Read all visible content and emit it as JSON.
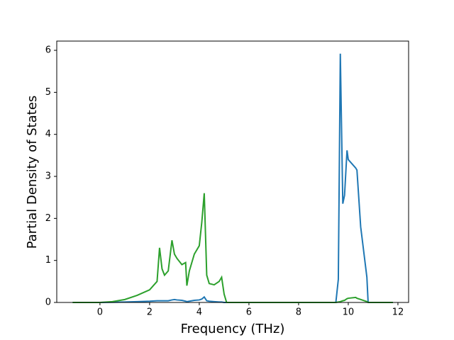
{
  "chart_data": {
    "type": "line",
    "x_label": "Frequency (THz)",
    "y_label": "Partial Density of States",
    "x": [
      -1.1,
      0,
      0.5,
      1.0,
      1.5,
      2.0,
      2.3,
      2.4,
      2.5,
      2.6,
      2.75,
      2.9,
      3.0,
      3.1,
      3.3,
      3.45,
      3.5,
      3.6,
      3.8,
      4.0,
      4.1,
      4.2,
      4.3,
      4.4,
      4.6,
      4.8,
      4.9,
      5.0,
      5.1,
      6,
      8,
      9.5,
      9.6,
      9.68,
      9.78,
      9.85,
      9.95,
      10.0,
      10.3,
      10.35,
      10.5,
      10.75,
      10.8,
      11.8
    ],
    "series": [
      {
        "color": "#1f77b4",
        "values": [
          0,
          0,
          0.005,
          0.01,
          0.02,
          0.03,
          0.04,
          0.04,
          0.04,
          0.04,
          0.04,
          0.06,
          0.07,
          0.06,
          0.05,
          0.03,
          0.02,
          0.03,
          0.05,
          0.06,
          0.08,
          0.13,
          0.04,
          0.03,
          0.02,
          0.01,
          0.01,
          0,
          0,
          0,
          0,
          0,
          0.55,
          5.92,
          2.35,
          2.55,
          3.62,
          3.4,
          3.2,
          3.15,
          1.8,
          0.6,
          0,
          0
        ]
      },
      {
        "color": "#2ca02c",
        "values": [
          0,
          0,
          0.02,
          0.07,
          0.17,
          0.3,
          0.5,
          1.3,
          0.8,
          0.65,
          0.75,
          1.48,
          1.15,
          1.05,
          0.9,
          0.95,
          0.4,
          0.75,
          1.15,
          1.35,
          1.9,
          2.6,
          0.65,
          0.45,
          0.42,
          0.5,
          0.6,
          0.2,
          0,
          0,
          0,
          0,
          0.01,
          0.02,
          0.04,
          0.05,
          0.09,
          0.1,
          0.12,
          0.1,
          0.07,
          0.02,
          0,
          0
        ]
      }
    ],
    "xlim": [
      -1.74,
      12.43
    ],
    "ylim": [
      0,
      6.22
    ],
    "xticks": [
      0,
      2,
      4,
      6,
      8,
      10,
      12
    ],
    "yticks": [
      0,
      1,
      2,
      3,
      4,
      5,
      6
    ]
  }
}
